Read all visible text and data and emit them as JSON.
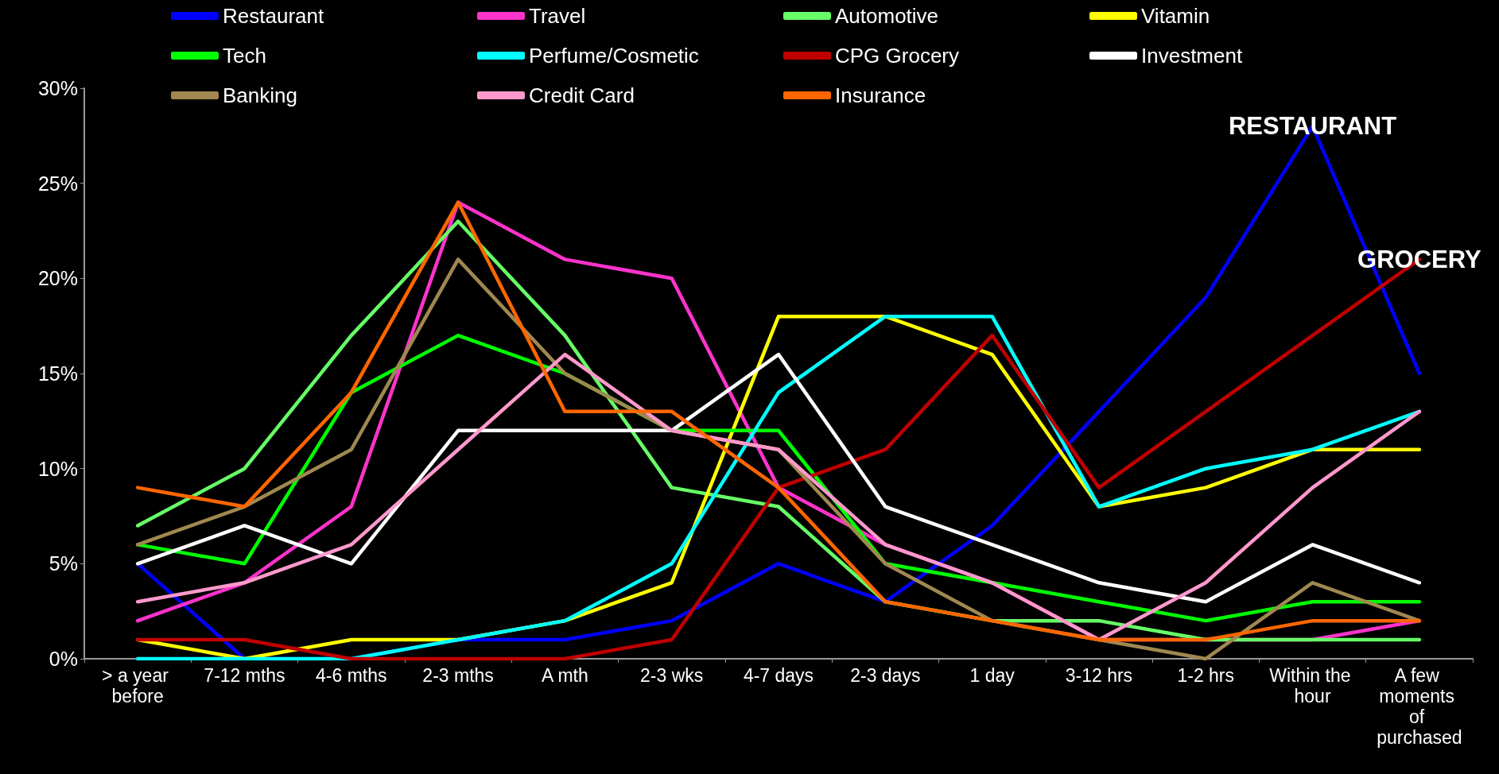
{
  "chart_data": {
    "type": "line",
    "categories": [
      "> a year before",
      "7-12 mths",
      "4-6 mths",
      "2-3 mths",
      "A mth",
      "2-3 wks",
      "4-7 days",
      "2-3 days",
      "1 day",
      "3-12 hrs",
      "1-2 hrs",
      "Within the hour",
      "A few moments of purchased"
    ],
    "series": [
      {
        "name": "Restaurant",
        "color": "#0000ff",
        "values": [
          5,
          0,
          0,
          1,
          1,
          2,
          5,
          3,
          7,
          13,
          19,
          28,
          15
        ]
      },
      {
        "name": "Travel",
        "color": "#ff33cc",
        "values": [
          2,
          4,
          8,
          24,
          21,
          20,
          9,
          6,
          4,
          1,
          1,
          1,
          2
        ]
      },
      {
        "name": "Automotive",
        "color": "#66ff66",
        "values": [
          7,
          10,
          17,
          23,
          17,
          9,
          8,
          3,
          2,
          2,
          1,
          1,
          1
        ]
      },
      {
        "name": "Vitamin",
        "color": "#ffff00",
        "values": [
          1,
          0,
          1,
          1,
          2,
          4,
          18,
          18,
          16,
          8,
          9,
          11,
          11
        ]
      },
      {
        "name": "Tech",
        "color": "#00ff00",
        "values": [
          6,
          5,
          14,
          17,
          15,
          12,
          12,
          5,
          4,
          3,
          2,
          3,
          3
        ]
      },
      {
        "name": "Perfume/Cosmetic",
        "color": "#00ffff",
        "values": [
          0,
          0,
          0,
          1,
          2,
          5,
          14,
          18,
          18,
          8,
          10,
          11,
          13
        ]
      },
      {
        "name": "CPG Grocery",
        "color": "#c00000",
        "values": [
          1,
          1,
          0,
          0,
          0,
          1,
          9,
          11,
          17,
          9,
          13,
          17,
          21
        ]
      },
      {
        "name": "Investment",
        "color": "#ffffff",
        "values": [
          5,
          7,
          5,
          12,
          12,
          12,
          16,
          8,
          6,
          4,
          3,
          6,
          4
        ]
      },
      {
        "name": "Banking",
        "color": "#a08850",
        "values": [
          6,
          8,
          11,
          21,
          15,
          12,
          11,
          5,
          2,
          1,
          0,
          4,
          2
        ]
      },
      {
        "name": "Credit Card",
        "color": "#ff99cc",
        "values": [
          3,
          4,
          6,
          11,
          16,
          12,
          11,
          6,
          4,
          1,
          4,
          9,
          13
        ]
      },
      {
        "name": "Insurance",
        "color": "#ff6600",
        "values": [
          9,
          8,
          14,
          24,
          13,
          13,
          9,
          3,
          2,
          1,
          1,
          2,
          2
        ]
      }
    ],
    "ylim": [
      0,
      30
    ],
    "yticks": [
      {
        "value": 0,
        "label": "0%"
      },
      {
        "value": 5,
        "label": "5%"
      },
      {
        "value": 10,
        "label": "10%"
      },
      {
        "value": 15,
        "label": "15%"
      },
      {
        "value": 20,
        "label": "20%"
      },
      {
        "value": 25,
        "label": "25%"
      },
      {
        "value": 30,
        "label": "30%"
      }
    ],
    "annotations": [
      {
        "text": "RESTAURANT",
        "x": "Within the hour",
        "y": 28
      },
      {
        "text": "GROCERY",
        "x": "A few moments of purchased",
        "y": 21
      }
    ],
    "grid": false,
    "legend": "top",
    "marker": "none",
    "line_style": "solid"
  }
}
